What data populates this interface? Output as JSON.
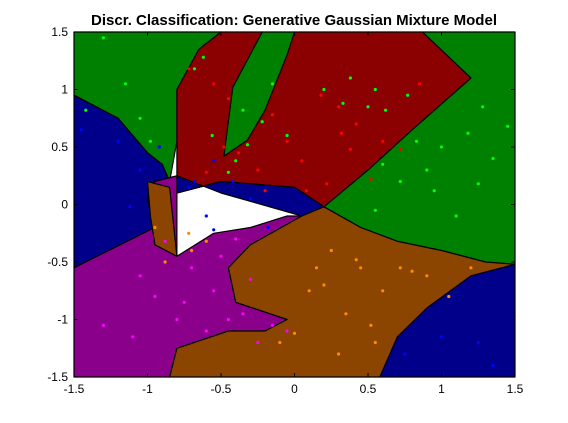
{
  "chart_data": {
    "type": "scatter",
    "title": "Discr. Classification: Generative Gaussian Mixture Model",
    "xlabel": "",
    "ylabel": "",
    "xlim": [
      -1.5,
      1.5
    ],
    "ylim": [
      -1.5,
      1.5
    ],
    "xticks": [
      -1.5,
      -1,
      -0.5,
      0,
      0.5,
      1,
      1.5
    ],
    "yticks": [
      -1.5,
      -1,
      -0.5,
      0,
      0.5,
      1,
      1.5
    ],
    "xtick_labels": [
      "-1.5",
      "-1",
      "-0.5",
      "0",
      "0.5",
      "1",
      "1.5"
    ],
    "ytick_labels": [
      "-1.5",
      "-1",
      "-0.5",
      "0",
      "0.5",
      "1",
      "1.5"
    ],
    "grid": false,
    "legend": "none",
    "regions": [
      {
        "class": "green",
        "color": "#008000",
        "polygons": [
          [
            [
              -1.5,
              1.5
            ],
            [
              -0.5,
              1.5
            ],
            [
              -0.65,
              1.35
            ],
            [
              -0.8,
              1.0
            ],
            [
              -0.8,
              0.55
            ],
            [
              -0.85,
              0.2
            ],
            [
              -0.9,
              0.35
            ],
            [
              -1.0,
              0.45
            ],
            [
              -1.2,
              0.75
            ],
            [
              -1.5,
              0.95
            ]
          ],
          [
            [
              -0.22,
              1.5
            ],
            [
              -0.42,
              1.02
            ],
            [
              -0.48,
              0.62
            ],
            [
              -0.48,
              0.42
            ],
            [
              -0.32,
              0.56
            ],
            [
              -0.2,
              0.82
            ],
            [
              -0.05,
              1.3
            ],
            [
              0.0,
              1.5
            ]
          ],
          [
            [
              0.87,
              1.5
            ],
            [
              1.5,
              1.5
            ],
            [
              1.5,
              -0.52
            ],
            [
              1.3,
              -0.5
            ],
            [
              1.0,
              -0.4
            ],
            [
              0.7,
              -0.32
            ],
            [
              0.45,
              -0.2
            ],
            [
              0.2,
              -0.02
            ],
            [
              0.5,
              0.3
            ],
            [
              0.8,
              0.65
            ],
            [
              1.2,
              1.1
            ]
          ]
        ]
      },
      {
        "class": "red",
        "color": "#8b0000",
        "polygons": [
          [
            [
              -0.5,
              1.5
            ],
            [
              -0.22,
              1.5
            ],
            [
              -0.42,
              1.02
            ],
            [
              -0.48,
              0.42
            ],
            [
              -0.32,
              0.56
            ],
            [
              -0.2,
              0.82
            ],
            [
              -0.05,
              1.3
            ],
            [
              0.0,
              1.5
            ],
            [
              0.87,
              1.5
            ],
            [
              1.2,
              1.1
            ],
            [
              0.8,
              0.65
            ],
            [
              0.5,
              0.3
            ],
            [
              0.2,
              -0.02
            ],
            [
              0.0,
              0.15
            ],
            [
              -0.5,
              0.2
            ],
            [
              -0.8,
              0.1
            ],
            [
              -0.8,
              0.55
            ],
            [
              -0.8,
              1.0
            ],
            [
              -0.65,
              1.35
            ]
          ]
        ]
      },
      {
        "class": "blue",
        "color": "#00008b",
        "polygons": [
          [
            [
              -1.5,
              0.95
            ],
            [
              -1.2,
              0.75
            ],
            [
              -1.0,
              0.45
            ],
            [
              -0.9,
              0.35
            ],
            [
              -0.85,
              0.2
            ],
            [
              -0.8,
              0.1
            ],
            [
              -0.5,
              0.2
            ],
            [
              0.0,
              0.15
            ],
            [
              0.2,
              -0.02
            ],
            [
              0.05,
              -0.1
            ],
            [
              -0.5,
              0.1
            ],
            [
              -0.8,
              0.25
            ],
            [
              -0.95,
              0.2
            ],
            [
              -1.0,
              0.05
            ],
            [
              -0.95,
              -0.2
            ],
            [
              -1.5,
              -0.55
            ]
          ],
          [
            [
              0.58,
              -1.5
            ],
            [
              1.5,
              -1.5
            ],
            [
              1.5,
              -0.52
            ],
            [
              1.2,
              -0.62
            ],
            [
              0.9,
              -0.9
            ],
            [
              0.7,
              -1.15
            ]
          ]
        ]
      },
      {
        "class": "purple",
        "color": "#8b008b",
        "polygons": [
          [
            [
              -1.5,
              -0.55
            ],
            [
              -0.95,
              -0.2
            ],
            [
              -1.0,
              0.05
            ],
            [
              -0.95,
              0.2
            ],
            [
              -0.8,
              0.25
            ],
            [
              -0.8,
              -0.45
            ],
            [
              -0.55,
              -0.25
            ],
            [
              -0.3,
              -0.2
            ],
            [
              -0.05,
              -0.1
            ],
            [
              0.05,
              -0.1
            ],
            [
              -0.3,
              -0.35
            ],
            [
              -0.45,
              -0.55
            ],
            [
              -0.4,
              -0.85
            ],
            [
              -0.05,
              -1.0
            ],
            [
              -0.2,
              -1.1
            ],
            [
              -0.45,
              -1.1
            ],
            [
              -0.8,
              -1.25
            ],
            [
              -0.85,
              -1.5
            ],
            [
              -1.5,
              -1.5
            ]
          ]
        ]
      },
      {
        "class": "orange",
        "color": "#8b4500",
        "polygons": [
          [
            [
              -0.85,
              -1.5
            ],
            [
              0.58,
              -1.5
            ],
            [
              0.7,
              -1.15
            ],
            [
              0.9,
              -0.9
            ],
            [
              1.2,
              -0.62
            ],
            [
              1.5,
              -0.52
            ],
            [
              1.3,
              -0.5
            ],
            [
              1.0,
              -0.4
            ],
            [
              0.7,
              -0.32
            ],
            [
              0.45,
              -0.2
            ],
            [
              0.2,
              -0.02
            ],
            [
              0.05,
              -0.1
            ],
            [
              -0.3,
              -0.35
            ],
            [
              -0.45,
              -0.55
            ],
            [
              -0.4,
              -0.85
            ],
            [
              -0.05,
              -1.0
            ],
            [
              -0.2,
              -1.1
            ],
            [
              -0.45,
              -1.1
            ],
            [
              -0.8,
              -1.25
            ]
          ],
          [
            [
              -1.0,
              0.2
            ],
            [
              -0.85,
              0.15
            ],
            [
              -0.8,
              -0.45
            ],
            [
              -0.95,
              -0.35
            ],
            [
              -0.98,
              -0.1
            ]
          ]
        ]
      }
    ],
    "series": [
      {
        "color": "#00ff00",
        "x": [
          -1.3,
          -0.68,
          -1.15,
          -0.62,
          -1.42,
          -1.05,
          -0.56,
          -0.98,
          -0.22,
          -0.35,
          -0.15,
          -0.05,
          0.2,
          0.33,
          0.38,
          0.5,
          0.55,
          0.62,
          0.77,
          0.83,
          1.0,
          1.18,
          1.28,
          1.35,
          1.45,
          0.9,
          0.95,
          1.1,
          1.25,
          0.6,
          0.72,
          0.55,
          -0.45,
          -0.32,
          -0.4
        ],
        "y": [
          1.45,
          1.18,
          1.05,
          1.28,
          0.82,
          0.75,
          0.6,
          0.55,
          0.72,
          0.82,
          1.05,
          0.6,
          1.0,
          0.88,
          1.1,
          0.85,
          1.0,
          0.82,
          0.95,
          0.55,
          0.5,
          0.62,
          0.85,
          0.4,
          0.68,
          0.3,
          0.12,
          -0.1,
          0.18,
          0.35,
          0.2,
          -0.05,
          0.28,
          0.52,
          0.38
        ]
      },
      {
        "color": "#ff0000",
        "x": [
          -0.72,
          -0.55,
          -0.45,
          -0.38,
          -0.15,
          -0.05,
          0.05,
          0.18,
          0.3,
          0.42,
          0.6,
          0.72,
          0.85,
          0.52,
          0.38,
          0.22,
          -0.6,
          -0.48,
          -0.25,
          0.08,
          0.32,
          -0.2
        ],
        "y": [
          1.18,
          1.05,
          0.92,
          0.45,
          0.78,
          0.55,
          0.38,
          0.95,
          0.85,
          0.7,
          0.55,
          0.48,
          1.05,
          0.22,
          0.48,
          0.18,
          0.28,
          0.5,
          0.3,
          0.12,
          0.62,
          0.12
        ]
      },
      {
        "color": "#0000ff",
        "x": [
          -1.45,
          -1.2,
          -1.05,
          -0.92,
          -0.72,
          -0.55,
          -0.42,
          -0.3,
          -0.18,
          -0.6,
          -0.55,
          -1.12,
          -0.68,
          0.75,
          1.0,
          1.25,
          1.35
        ],
        "y": [
          0.65,
          0.55,
          0.3,
          0.5,
          0.15,
          0.38,
          0.2,
          0.05,
          -0.2,
          -0.1,
          -0.22,
          -0.02,
          0.2,
          -1.3,
          -1.15,
          -1.2,
          -1.4
        ]
      },
      {
        "color": "#ff00ff",
        "x": [
          -1.3,
          -1.1,
          -0.95,
          -0.8,
          -0.6,
          -0.45,
          -0.35,
          -0.25,
          -0.15,
          -0.05,
          -0.55,
          -0.7,
          -1.05,
          -0.88,
          -0.4,
          -0.5,
          -0.3,
          -0.75
        ],
        "y": [
          -1.05,
          -1.15,
          -0.8,
          -1.0,
          -1.1,
          -1.0,
          -0.95,
          -1.2,
          -1.05,
          -1.1,
          -0.75,
          -0.55,
          -0.62,
          -0.32,
          -0.3,
          -0.45,
          -0.65,
          -0.85
        ]
      },
      {
        "color": "#ff8c00",
        "x": [
          -0.95,
          -0.88,
          -0.72,
          0.25,
          0.45,
          0.6,
          0.72,
          0.9,
          1.05,
          0.35,
          0.52,
          0.1,
          0.2,
          0.0,
          -0.1,
          0.3,
          0.55,
          -0.7,
          -0.6,
          0.15,
          0.42,
          0.8,
          1.2
        ],
        "y": [
          -0.2,
          -0.5,
          -0.25,
          -0.4,
          -0.55,
          -0.75,
          -0.55,
          -0.62,
          -0.8,
          -0.95,
          -1.05,
          -0.75,
          -0.7,
          -1.12,
          -1.2,
          -1.3,
          -1.2,
          -0.4,
          -0.32,
          -0.55,
          -0.48,
          -0.58,
          -0.55
        ]
      }
    ]
  }
}
